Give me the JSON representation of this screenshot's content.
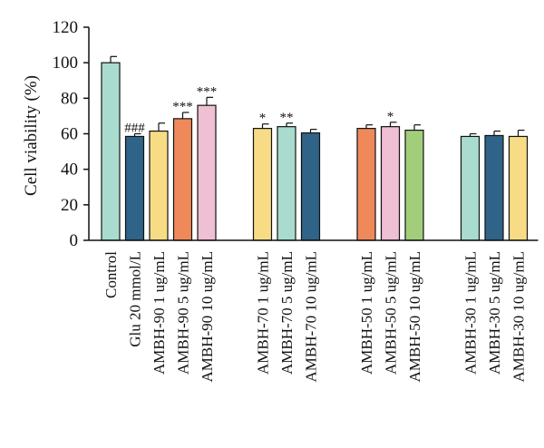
{
  "chart_data": {
    "type": "bar",
    "ylabel": "Cell viability (%)",
    "xlabel": "",
    "ylim": [
      0,
      120
    ],
    "yticks": [
      0,
      20,
      40,
      60,
      80,
      100,
      120
    ],
    "groups": [
      [
        0,
        1,
        2,
        3,
        4
      ],
      [
        5,
        6,
        7
      ],
      [
        8,
        9,
        10
      ],
      [
        11,
        12,
        13
      ]
    ],
    "categories": [
      "Control",
      "Glu 20 mmol/L",
      "AMBH-90 1 ug/mL",
      "AMBH-90 5 ug/mL",
      "AMBH-90 10 ug/mL",
      "AMBH-70 1 ug/mL",
      "AMBH-70 5 ug/mL",
      "AMBH-70 10 ug/mL",
      "AMBH-50 1 ug/mL",
      "AMBH-50 5 ug/mL",
      "AMBH-50 10 ug/mL",
      "AMBH-30 1 ug/mL",
      "AMBH-30 5 ug/mL",
      "AMBH-30 10 ug/mL"
    ],
    "values": [
      100,
      58.5,
      61.5,
      68.5,
      76,
      63,
      64,
      60.5,
      63,
      64,
      62,
      58.5,
      59,
      58.5
    ],
    "errors": [
      3.5,
      1.5,
      4.5,
      3.5,
      4.5,
      2.5,
      2,
      2,
      2,
      2.5,
      3,
      1.5,
      2.5,
      3.5
    ],
    "significance": [
      "",
      "###",
      "",
      "***",
      "***",
      "*",
      "**",
      "",
      "",
      "*",
      "",
      "",
      "",
      ""
    ],
    "colors": [
      "#a9dccf",
      "#2f6387",
      "#f7dc85",
      "#f0895a",
      "#efbfd3",
      "#f7dc85",
      "#a9dccf",
      "#2f6387",
      "#f0895a",
      "#efbfd3",
      "#a2ce7c",
      "#a9dccf",
      "#2f6387",
      "#f7dc85"
    ]
  }
}
